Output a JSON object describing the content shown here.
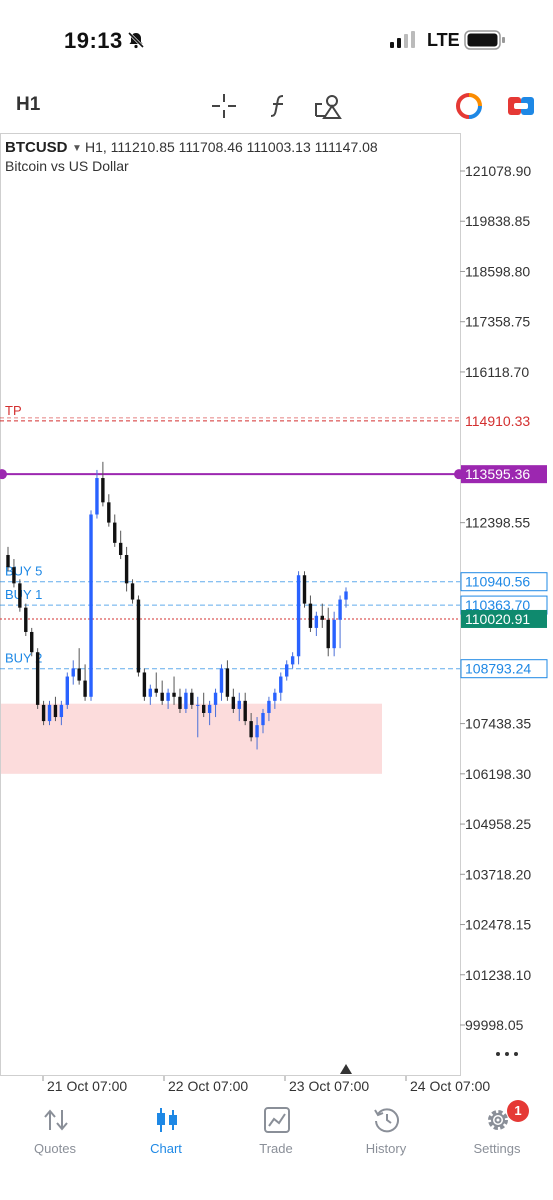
{
  "status_bar": {
    "time": "19:13",
    "network": "LTE"
  },
  "toolbar": {
    "timeframe": "H1"
  },
  "chart_header": {
    "symbol": "BTCUSD",
    "ohlc": "H1, 111210.85 111708.46 111003.13 111147.08",
    "description": "Bitcoin vs US Dollar"
  },
  "price_axis": {
    "labels": [
      "121078.90",
      "119838.85",
      "118598.80",
      "117358.75",
      "116118.70",
      "114910.33",
      "113595.36",
      "112398.55",
      "110940.56",
      "110363.70",
      "110020.91",
      "108793.24",
      "107438.35",
      "106198.30",
      "104958.25",
      "103718.20",
      "102478.15",
      "101238.10",
      "99998.05"
    ]
  },
  "time_axis": {
    "labels": [
      "21 Oct 07:00",
      "22 Oct 07:00",
      "23 Oct 07:00",
      "24 Oct 07:00"
    ]
  },
  "levels": {
    "tp": {
      "label": "TP",
      "price": "114910.33",
      "color": "#d32f2f"
    },
    "alert": {
      "price": "113595.36",
      "color": "#9c27b0"
    },
    "buy5": {
      "label": "BUY 5",
      "price": "110940.56"
    },
    "buy1": {
      "label": "BUY 1",
      "price": "110363.70"
    },
    "bid": {
      "price": "110020.91",
      "color": "#0f8a6e"
    },
    "buy2": {
      "label": "BUY 2",
      "price": "108793.24"
    },
    "buy_color": "#1e88e5"
  },
  "zone": {
    "from": 106198.3,
    "to": 107930.0,
    "color": "#fcdcdc"
  },
  "chart_data": {
    "type": "candlestick",
    "ylim": [
      99000,
      122000
    ],
    "candles": [
      {
        "o": 111600,
        "h": 111800,
        "l": 111200,
        "c": 111300
      },
      {
        "o": 111300,
        "h": 111500,
        "l": 110800,
        "c": 110900
      },
      {
        "o": 110900,
        "h": 111000,
        "l": 110200,
        "c": 110300
      },
      {
        "o": 110300,
        "h": 110400,
        "l": 109600,
        "c": 109700
      },
      {
        "o": 109700,
        "h": 109800,
        "l": 109100,
        "c": 109200
      },
      {
        "o": 109200,
        "h": 109300,
        "l": 107800,
        "c": 107900
      },
      {
        "o": 107900,
        "h": 108000,
        "l": 107400,
        "c": 107500
      },
      {
        "o": 107500,
        "h": 108000,
        "l": 107400,
        "c": 107900
      },
      {
        "o": 107900,
        "h": 108100,
        "l": 107500,
        "c": 107600
      },
      {
        "o": 107600,
        "h": 108000,
        "l": 107400,
        "c": 107900
      },
      {
        "o": 107900,
        "h": 108700,
        "l": 107800,
        "c": 108600
      },
      {
        "o": 108600,
        "h": 109000,
        "l": 108400,
        "c": 108800
      },
      {
        "o": 108800,
        "h": 109300,
        "l": 108400,
        "c": 108500
      },
      {
        "o": 108500,
        "h": 108900,
        "l": 108000,
        "c": 108100
      },
      {
        "o": 108100,
        "h": 112700,
        "l": 108000,
        "c": 112600
      },
      {
        "o": 112600,
        "h": 113700,
        "l": 112500,
        "c": 113500
      },
      {
        "o": 113500,
        "h": 113900,
        "l": 112800,
        "c": 112900
      },
      {
        "o": 112900,
        "h": 113100,
        "l": 112300,
        "c": 112400
      },
      {
        "o": 112400,
        "h": 112600,
        "l": 111800,
        "c": 111900
      },
      {
        "o": 111900,
        "h": 112200,
        "l": 111500,
        "c": 111600
      },
      {
        "o": 111600,
        "h": 111800,
        "l": 110700,
        "c": 110900
      },
      {
        "o": 110900,
        "h": 111000,
        "l": 110400,
        "c": 110500
      },
      {
        "o": 110500,
        "h": 110600,
        "l": 108600,
        "c": 108700
      },
      {
        "o": 108700,
        "h": 108800,
        "l": 108000,
        "c": 108100
      },
      {
        "o": 108100,
        "h": 108400,
        "l": 107900,
        "c": 108300
      },
      {
        "o": 108300,
        "h": 108700,
        "l": 108100,
        "c": 108200
      },
      {
        "o": 108200,
        "h": 108500,
        "l": 107900,
        "c": 108000
      },
      {
        "o": 108000,
        "h": 108300,
        "l": 107800,
        "c": 108200
      },
      {
        "o": 108200,
        "h": 108600,
        "l": 107900,
        "c": 108100
      },
      {
        "o": 108100,
        "h": 108300,
        "l": 107700,
        "c": 107800
      },
      {
        "o": 107800,
        "h": 108300,
        "l": 107700,
        "c": 108200
      },
      {
        "o": 108200,
        "h": 108300,
        "l": 107800,
        "c": 107900
      },
      {
        "o": 107900,
        "h": 108100,
        "l": 107100,
        "c": 107900
      },
      {
        "o": 107900,
        "h": 108200,
        "l": 107600,
        "c": 107700
      },
      {
        "o": 107700,
        "h": 108000,
        "l": 107400,
        "c": 107900
      },
      {
        "o": 107900,
        "h": 108300,
        "l": 107600,
        "c": 108200
      },
      {
        "o": 108200,
        "h": 108900,
        "l": 108000,
        "c": 108800
      },
      {
        "o": 108800,
        "h": 109000,
        "l": 108000,
        "c": 108100
      },
      {
        "o": 108100,
        "h": 108300,
        "l": 107700,
        "c": 107800
      },
      {
        "o": 107800,
        "h": 108200,
        "l": 107500,
        "c": 108000
      },
      {
        "o": 108000,
        "h": 108200,
        "l": 107400,
        "c": 107500
      },
      {
        "o": 107500,
        "h": 107700,
        "l": 107000,
        "c": 107100
      },
      {
        "o": 107100,
        "h": 107600,
        "l": 106800,
        "c": 107400
      },
      {
        "o": 107400,
        "h": 107800,
        "l": 107200,
        "c": 107700
      },
      {
        "o": 107700,
        "h": 108100,
        "l": 107500,
        "c": 108000
      },
      {
        "o": 108000,
        "h": 108300,
        "l": 107800,
        "c": 108200
      },
      {
        "o": 108200,
        "h": 108700,
        "l": 108000,
        "c": 108600
      },
      {
        "o": 108600,
        "h": 109000,
        "l": 108500,
        "c": 108900
      },
      {
        "o": 108900,
        "h": 109200,
        "l": 108800,
        "c": 109100
      },
      {
        "o": 109100,
        "h": 111200,
        "l": 108900,
        "c": 111100
      },
      {
        "o": 111100,
        "h": 111200,
        "l": 110300,
        "c": 110400
      },
      {
        "o": 110400,
        "h": 110600,
        "l": 109700,
        "c": 109800
      },
      {
        "o": 109800,
        "h": 110200,
        "l": 109600,
        "c": 110100
      },
      {
        "o": 110100,
        "h": 110400,
        "l": 109800,
        "c": 110000
      },
      {
        "o": 110000,
        "h": 110300,
        "l": 109100,
        "c": 109300
      },
      {
        "o": 109300,
        "h": 110200,
        "l": 109100,
        "c": 110000
      },
      {
        "o": 110000,
        "h": 110600,
        "l": 109300,
        "c": 110500
      },
      {
        "o": 110500,
        "h": 110800,
        "l": 110300,
        "c": 110700
      }
    ]
  },
  "tabs": [
    {
      "label": "Quotes",
      "icon": "arrows-updown-icon"
    },
    {
      "label": "Chart",
      "icon": "candlestick-icon"
    },
    {
      "label": "Trade",
      "icon": "trend-chart-icon"
    },
    {
      "label": "History",
      "icon": "history-clock-icon"
    },
    {
      "label": "Settings",
      "icon": "gear-icon"
    }
  ],
  "settings_badge": "1"
}
